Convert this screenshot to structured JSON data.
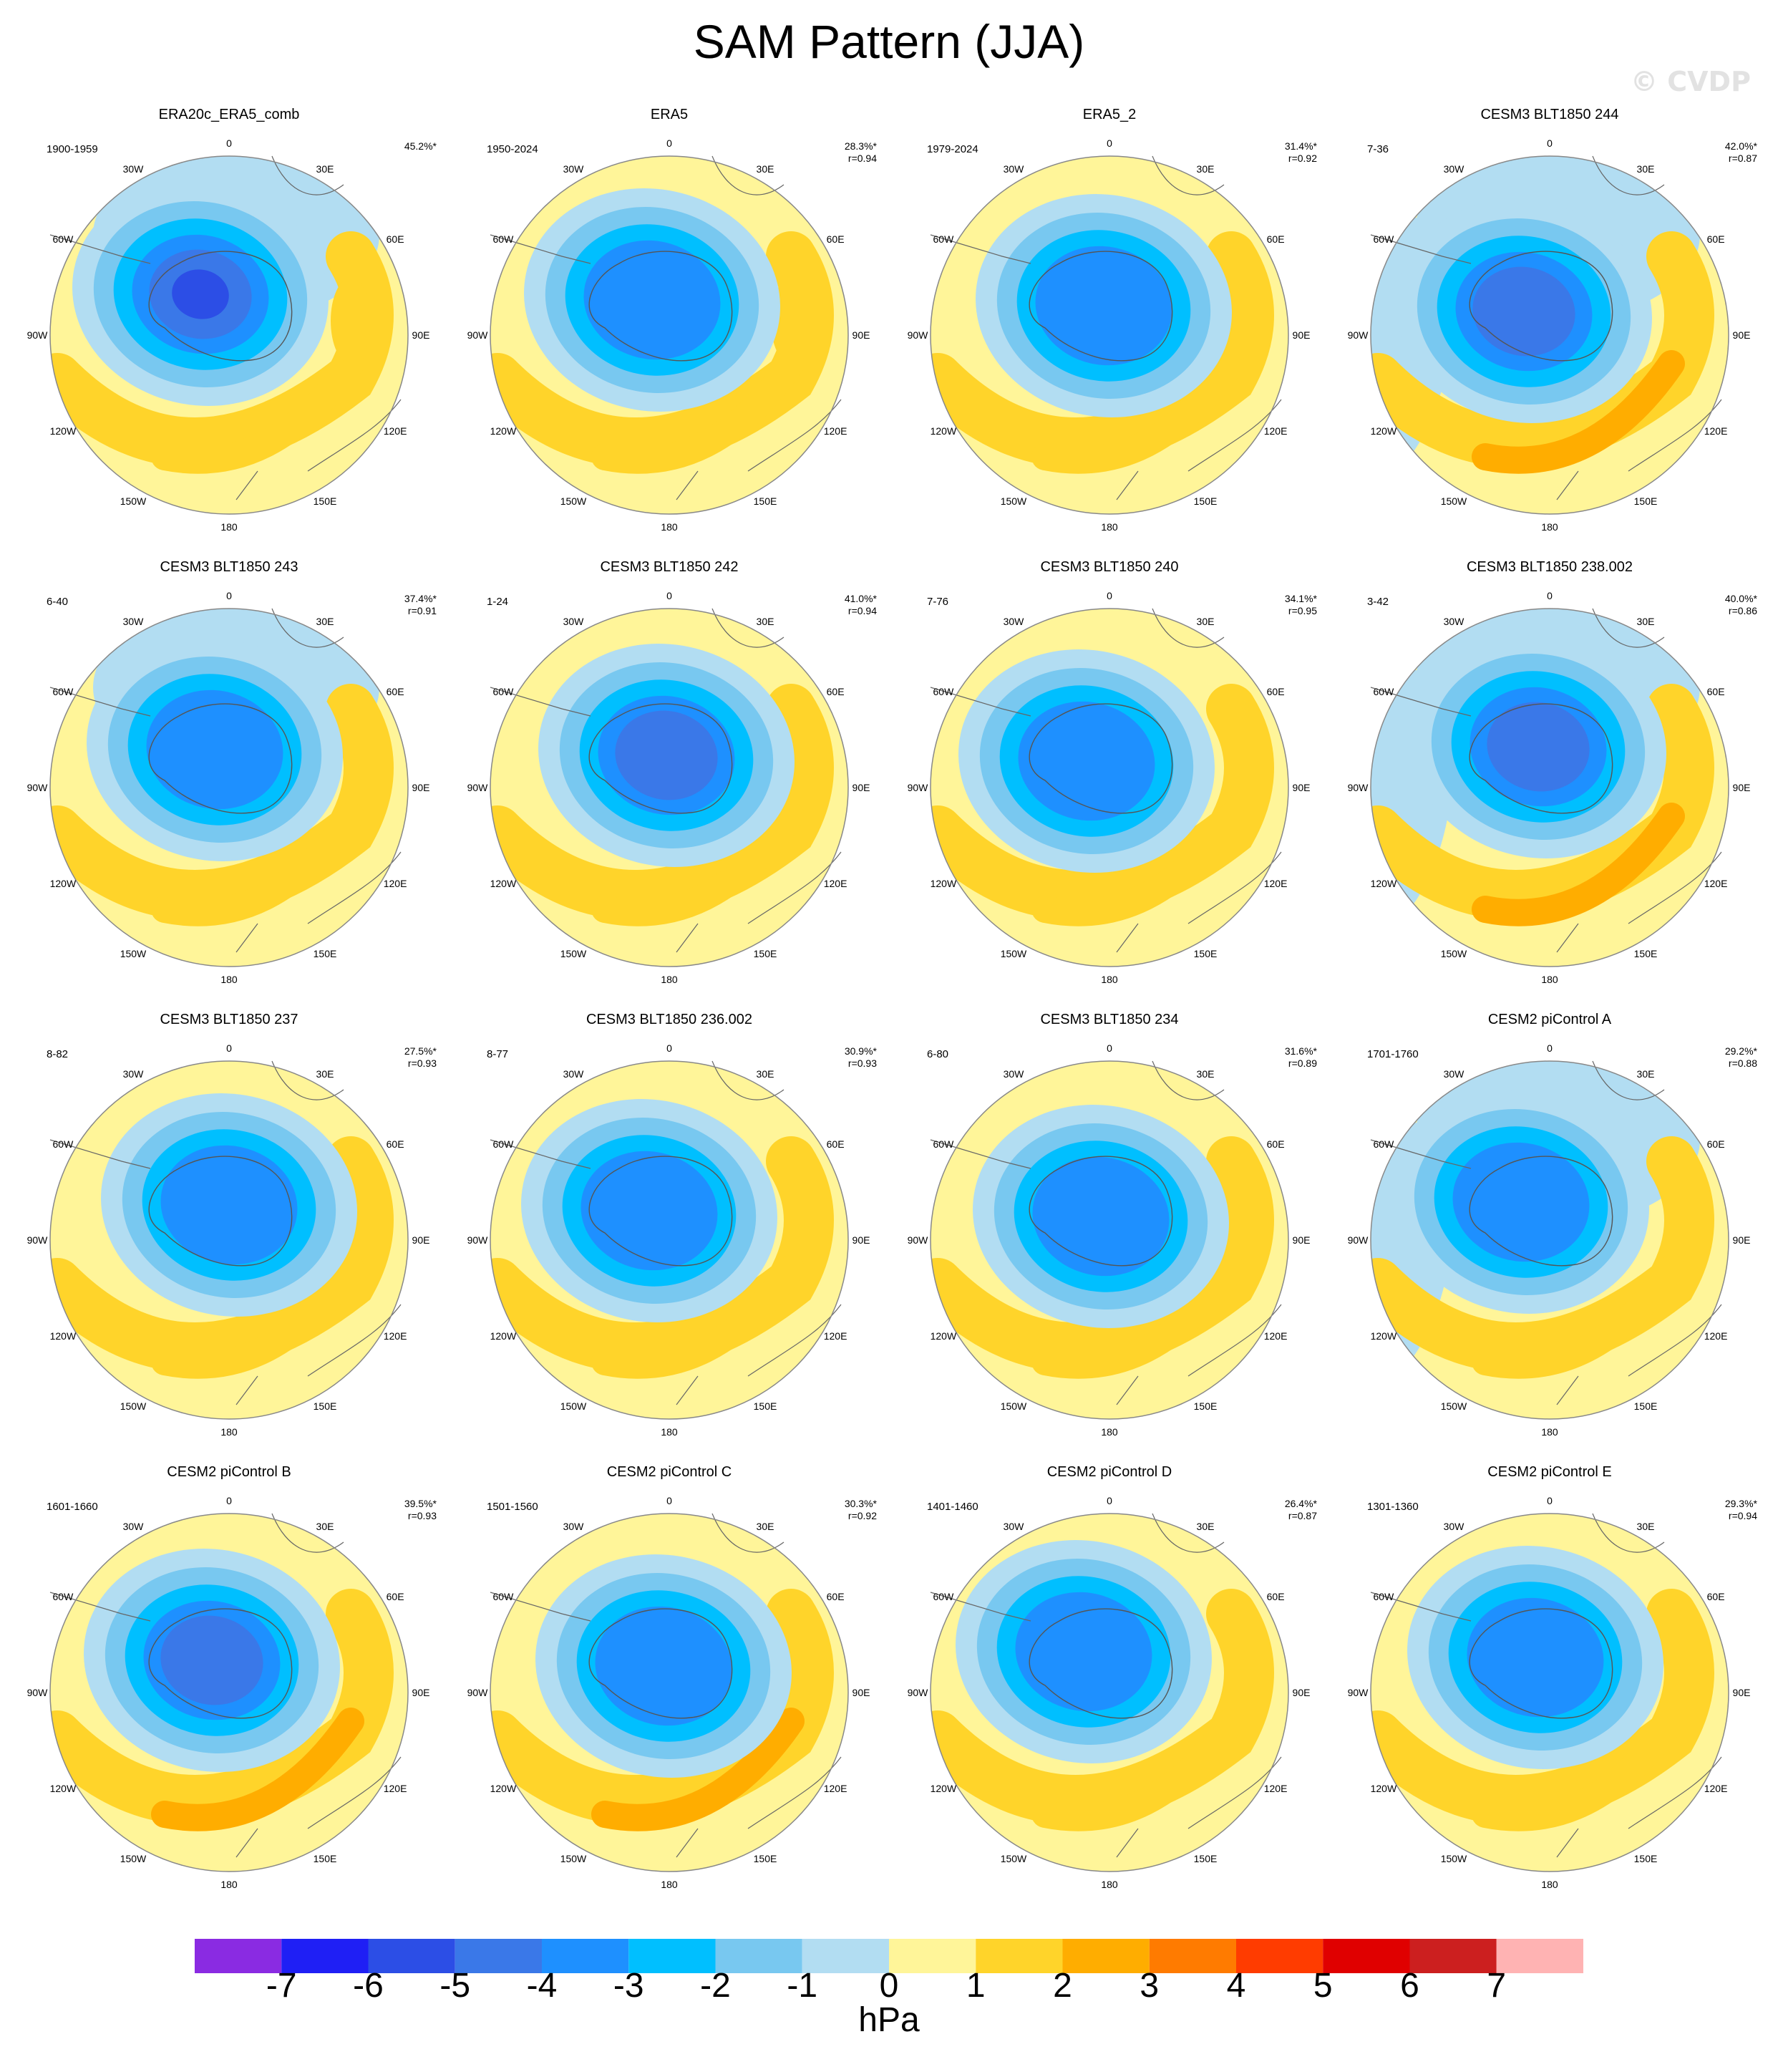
{
  "title": "SAM Pattern (JJA)",
  "watermark": "© CVDP",
  "units": "hPa",
  "colorbar": {
    "colors": [
      "#8a2be2",
      "#1f1ff5",
      "#2c4ee6",
      "#3a78e8",
      "#1e90ff",
      "#00bfff",
      "#78c8f0",
      "#b2ddf2",
      "#fff599",
      "#ffd42a",
      "#ffad00",
      "#ff7b00",
      "#ff3c00",
      "#e00000",
      "#cc1f1f",
      "#ffb3b3"
    ],
    "labels": [
      "-7",
      "-6",
      "-5",
      "-4",
      "-3",
      "-2",
      "-1",
      "0",
      "1",
      "2",
      "3",
      "4",
      "5",
      "6",
      "7"
    ]
  },
  "longitude_labels": [
    "0",
    "30E",
    "60E",
    "90E",
    "120E",
    "150E",
    "180",
    "150W",
    "120W",
    "90W",
    "60W",
    "30W"
  ],
  "panels": [
    {
      "title": "ERA20c_ERA5_comb",
      "period": "1900-1959",
      "pct": "45.2%*",
      "r": ""
    },
    {
      "title": "ERA5",
      "period": "1950-2024",
      "pct": "28.3%*",
      "r": "r=0.94"
    },
    {
      "title": "ERA5_2",
      "period": "1979-2024",
      "pct": "31.4%*",
      "r": "r=0.92"
    },
    {
      "title": "CESM3 BLT1850 244",
      "period": "7-36",
      "pct": "42.0%*",
      "r": "r=0.87"
    },
    {
      "title": "CESM3 BLT1850 243",
      "period": "6-40",
      "pct": "37.4%*",
      "r": "r=0.91"
    },
    {
      "title": "CESM3 BLT1850 242",
      "period": "1-24",
      "pct": "41.0%*",
      "r": "r=0.94"
    },
    {
      "title": "CESM3 BLT1850 240",
      "period": "7-76",
      "pct": "34.1%*",
      "r": "r=0.95"
    },
    {
      "title": "CESM3 BLT1850 238.002",
      "period": "3-42",
      "pct": "40.0%*",
      "r": "r=0.86"
    },
    {
      "title": "CESM3 BLT1850 237",
      "period": "8-82",
      "pct": "27.5%*",
      "r": "r=0.93"
    },
    {
      "title": "CESM3 BLT1850 236.002",
      "period": "8-77",
      "pct": "30.9%*",
      "r": "r=0.93"
    },
    {
      "title": "CESM3 BLT1850 234",
      "period": "6-80",
      "pct": "31.6%*",
      "r": "r=0.89"
    },
    {
      "title": "CESM2 piControl A",
      "period": "1701-1760",
      "pct": "29.2%*",
      "r": "r=0.88"
    },
    {
      "title": "CESM2 piControl B",
      "period": "1601-1660",
      "pct": "39.5%*",
      "r": "r=0.93"
    },
    {
      "title": "CESM2 piControl C",
      "period": "1501-1560",
      "pct": "30.3%*",
      "r": "r=0.92"
    },
    {
      "title": "CESM2 piControl D",
      "period": "1401-1460",
      "pct": "26.4%*",
      "r": "r=0.87"
    },
    {
      "title": "CESM2 piControl E",
      "period": "1301-1360",
      "pct": "29.3%*",
      "r": "r=0.94"
    }
  ]
}
